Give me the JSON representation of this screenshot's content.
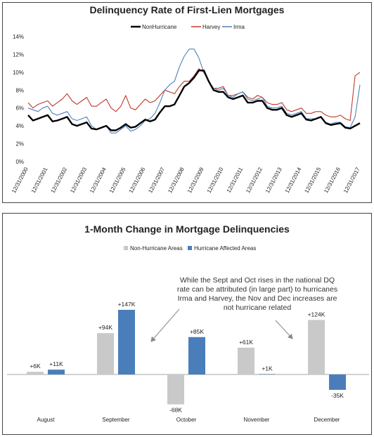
{
  "chart_data": [
    {
      "type": "line",
      "title": "Delinquency Rate of First-Lien Mortgages",
      "categories": [
        "12/31/2000",
        null,
        null,
        null,
        "12/31/2001",
        null,
        null,
        null,
        "12/31/2002",
        null,
        null,
        null,
        "12/31/2003",
        null,
        null,
        null,
        "12/31/2004",
        null,
        null,
        null,
        "12/31/2005",
        null,
        null,
        null,
        "12/31/2006",
        null,
        null,
        null,
        "12/31/2007",
        null,
        null,
        null,
        "12/31/2008",
        null,
        null,
        null,
        "12/31/2009",
        null,
        null,
        null,
        "12/31/2010",
        null,
        null,
        null,
        "12/31/2011",
        null,
        null,
        null,
        "12/31/2012",
        null,
        null,
        null,
        "12/31/2013",
        null,
        null,
        null,
        "12/31/2014",
        null,
        null,
        null,
        "12/31/2015",
        null,
        null,
        null,
        "12/31/2016",
        null,
        null,
        null,
        "12/31/2017"
      ],
      "series": [
        {
          "name": "NonHurricane",
          "color": "#000000",
          "values": [
            5.2,
            4.6,
            4.8,
            5.0,
            5.2,
            4.5,
            4.6,
            4.8,
            5.0,
            4.2,
            4.0,
            4.2,
            4.4,
            3.7,
            3.6,
            3.8,
            4.0,
            3.5,
            3.5,
            3.8,
            4.2,
            3.8,
            3.9,
            4.3,
            4.7,
            4.5,
            4.7,
            5.5,
            6.2,
            6.2,
            6.4,
            7.4,
            8.4,
            8.8,
            9.4,
            10.2,
            10.2,
            9.0,
            8.0,
            7.8,
            7.8,
            7.2,
            7.0,
            7.2,
            7.4,
            6.6,
            6.6,
            6.8,
            6.8,
            6.0,
            5.8,
            5.8,
            6.0,
            5.2,
            5.0,
            5.2,
            5.4,
            4.7,
            4.6,
            4.8,
            5.0,
            4.3,
            4.1,
            4.2,
            4.3,
            3.8,
            3.7,
            4.0,
            4.3
          ]
        },
        {
          "name": "Harvey",
          "color": "#c0392b",
          "values": [
            6.6,
            6.0,
            6.4,
            6.6,
            6.8,
            6.2,
            6.6,
            7.0,
            7.6,
            6.8,
            6.4,
            6.8,
            7.2,
            6.2,
            6.2,
            6.6,
            7.0,
            6.0,
            5.6,
            6.2,
            7.4,
            6.0,
            5.8,
            6.4,
            7.0,
            6.6,
            6.8,
            7.4,
            8.0,
            7.8,
            7.6,
            8.4,
            9.0,
            9.0,
            9.6,
            10.4,
            10.0,
            9.0,
            8.2,
            8.2,
            8.4,
            7.4,
            7.4,
            7.6,
            7.8,
            7.2,
            7.0,
            7.4,
            7.2,
            6.6,
            6.4,
            6.4,
            6.6,
            5.8,
            5.6,
            5.8,
            6.0,
            5.4,
            5.4,
            5.6,
            5.6,
            5.2,
            5.0,
            5.0,
            5.2,
            4.8,
            4.6,
            9.6,
            10.0
          ]
        },
        {
          "name": "Irma",
          "color": "#4f81bd",
          "values": [
            6.0,
            5.8,
            5.6,
            6.0,
            6.2,
            5.4,
            5.2,
            5.4,
            5.6,
            4.8,
            4.6,
            4.8,
            5.0,
            4.0,
            3.6,
            3.8,
            4.0,
            3.2,
            3.2,
            3.6,
            4.0,
            3.4,
            3.6,
            4.0,
            4.6,
            4.8,
            5.4,
            6.6,
            8.0,
            8.6,
            9.0,
            10.6,
            11.8,
            12.6,
            12.6,
            11.6,
            10.0,
            9.0,
            8.2,
            8.0,
            8.2,
            7.4,
            7.2,
            7.6,
            7.8,
            7.0,
            6.8,
            7.0,
            7.2,
            6.2,
            6.0,
            6.0,
            6.2,
            5.4,
            5.2,
            5.4,
            5.6,
            4.8,
            4.8,
            4.8,
            5.0,
            4.4,
            4.2,
            4.4,
            4.4,
            3.9,
            3.8,
            5.0,
            8.6
          ]
        }
      ],
      "ylim": [
        0,
        14
      ],
      "yticks": [
        {
          "value": 0,
          "label": "0%"
        },
        {
          "value": 2,
          "label": "2%"
        },
        {
          "value": 4,
          "label": "4%"
        },
        {
          "value": 6,
          "label": "6%"
        },
        {
          "value": 8,
          "label": "8%"
        },
        {
          "value": 10,
          "label": "10%"
        },
        {
          "value": 12,
          "label": "12%"
        },
        {
          "value": 14,
          "label": "14%"
        }
      ],
      "grid": false,
      "legend": "top"
    },
    {
      "type": "bar",
      "title": "1-Month Change in Mortgage Delinquencies",
      "categories": [
        "August",
        "September",
        "October",
        "November",
        "December"
      ],
      "series": [
        {
          "name": "Non-Hurricane Areas",
          "color": "#c9c9c9",
          "values": [
            6,
            94,
            -68,
            61,
            124
          ],
          "value_labels": [
            "+6K",
            "+94K",
            "-68K",
            "+61K",
            "+124K"
          ]
        },
        {
          "name": "Hurricane Affected Areas",
          "color": "#4a7ebb",
          "values": [
            11,
            147,
            85,
            1,
            -35
          ],
          "value_labels": [
            "+11K",
            "+147K",
            "+85K",
            "+1K",
            "-35K"
          ]
        }
      ],
      "annotation": [
        "While the Sept and Oct rises in the national DQ",
        "rate can be attributed (in large part) to hurricanes",
        "Irma and Harvey, the Nov and Dec increases are",
        "not hurricane related"
      ],
      "legend": "top"
    }
  ]
}
